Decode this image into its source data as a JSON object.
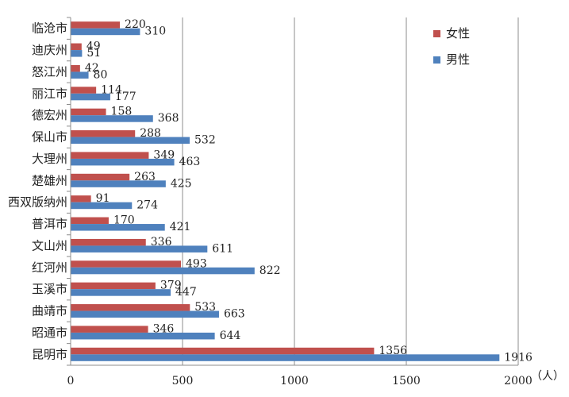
{
  "chart_data": {
    "type": "bar",
    "orientation": "horizontal",
    "categories": [
      "临沧市",
      "迪庆州",
      "怒江州",
      "丽江市",
      "德宏州",
      "保山市",
      "大理州",
      "楚雄州",
      "西双版纳州",
      "普洱市",
      "文山州",
      "红河州",
      "玉溪市",
      "曲靖市",
      "昭通市",
      "昆明市"
    ],
    "series": [
      {
        "name": "女性",
        "color": "#C0504D",
        "values": [
          220,
          49,
          42,
          114,
          158,
          288,
          349,
          263,
          91,
          170,
          336,
          493,
          379,
          533,
          346,
          1356
        ]
      },
      {
        "name": "男性",
        "color": "#4F81BD",
        "values": [
          310,
          51,
          80,
          177,
          368,
          532,
          463,
          425,
          274,
          421,
          611,
          822,
          447,
          663,
          644,
          1916
        ]
      }
    ],
    "xlim": [
      0,
      2000
    ],
    "xticks": [
      0,
      500,
      1000,
      1500,
      2000
    ],
    "xunit": "（人）",
    "grid": true,
    "legend_position": "top-right"
  }
}
